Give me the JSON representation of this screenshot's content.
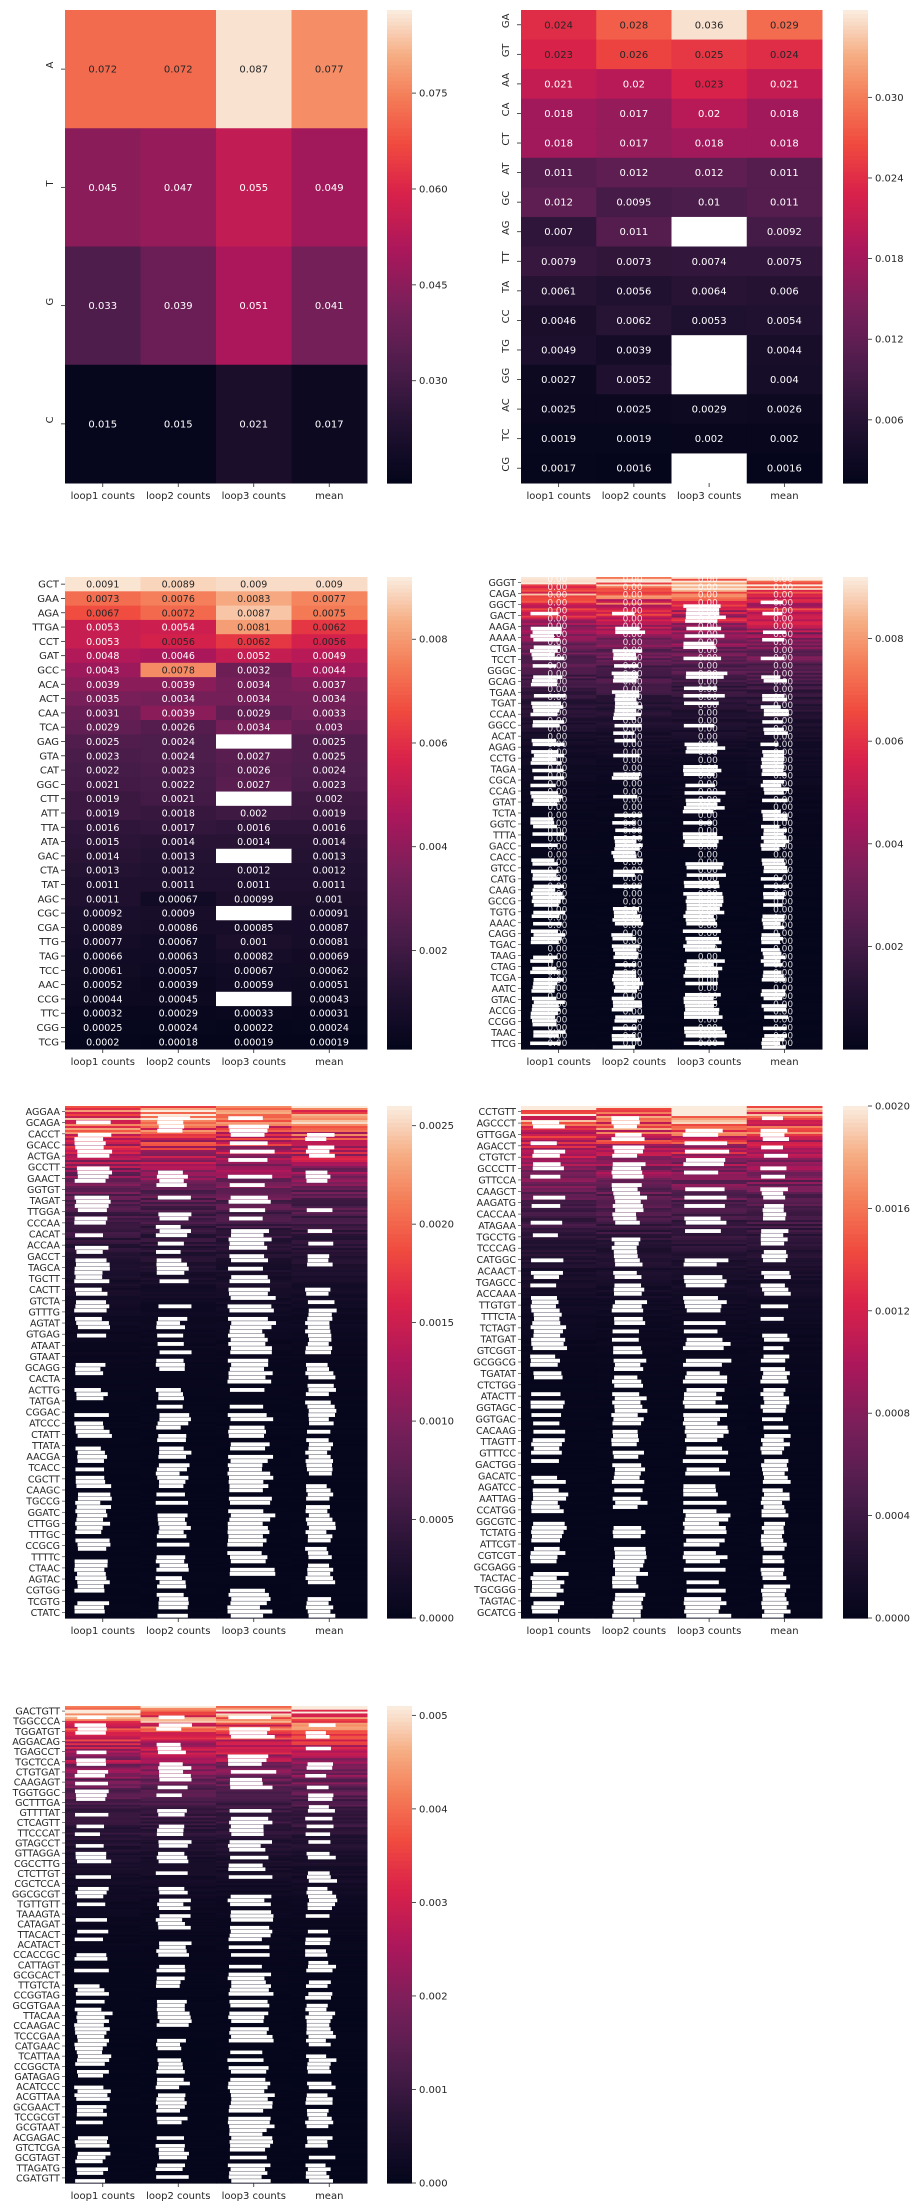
{
  "figure": {
    "background": "#ffffff"
  },
  "colormap": {
    "name": "rocket",
    "missing_color": "#ffffff",
    "text_dark": "#262626",
    "text_light": "#ffffff"
  },
  "chart_data": [
    {
      "type": "heatmap",
      "title": "",
      "columns": [
        "loop1 counts",
        "loop2 counts",
        "loop3 counts",
        "mean"
      ],
      "rows": [
        "A",
        "T",
        "G",
        "C"
      ],
      "values": [
        [
          0.072,
          0.072,
          0.087,
          0.077
        ],
        [
          0.045,
          0.047,
          0.055,
          0.049
        ],
        [
          0.033,
          0.039,
          0.051,
          0.041
        ],
        [
          0.015,
          0.015,
          0.021,
          0.017
        ]
      ],
      "annot": true,
      "row_label_rotation": "vertical",
      "vlim": [
        0.014,
        0.088
      ],
      "colorbar_ticks": [
        0.03,
        0.045,
        0.06,
        0.075
      ],
      "colorbar_labels": [
        "0.030",
        "0.045",
        "0.060",
        "0.075"
      ]
    },
    {
      "type": "heatmap",
      "title": "",
      "columns": [
        "loop1 counts",
        "loop2 counts",
        "loop3 counts",
        "mean"
      ],
      "rows": [
        "GA",
        "GT",
        "AA",
        "CA",
        "CT",
        "AT",
        "GC",
        "AG",
        "TT",
        "TA",
        "CC",
        "TG",
        "GG",
        "AC",
        "TC",
        "CG"
      ],
      "values": [
        [
          0.024,
          0.028,
          0.036,
          0.029
        ],
        [
          0.023,
          0.026,
          0.025,
          0.024
        ],
        [
          0.021,
          0.02,
          0.023,
          0.021
        ],
        [
          0.018,
          0.017,
          0.02,
          0.018
        ],
        [
          0.018,
          0.017,
          0.018,
          0.018
        ],
        [
          0.011,
          0.012,
          0.012,
          0.011
        ],
        [
          0.012,
          0.0095,
          0.01,
          0.011
        ],
        [
          0.007,
          0.011,
          null,
          0.0092
        ],
        [
          0.0079,
          0.0073,
          0.0074,
          0.0075
        ],
        [
          0.0061,
          0.0056,
          0.0064,
          0.006
        ],
        [
          0.0046,
          0.0062,
          0.0053,
          0.0054
        ],
        [
          0.0049,
          0.0039,
          null,
          0.0044
        ],
        [
          0.0027,
          0.0052,
          null,
          0.004
        ],
        [
          0.0025,
          0.0025,
          0.0029,
          0.0026
        ],
        [
          0.0019,
          0.0019,
          0.002,
          0.002
        ],
        [
          0.0017,
          0.0016,
          null,
          0.0016
        ]
      ],
      "annot": true,
      "row_label_rotation": "vertical",
      "vlim": [
        0.0013,
        0.0365
      ],
      "colorbar_ticks": [
        0.006,
        0.012,
        0.018,
        0.024,
        0.03
      ],
      "colorbar_labels": [
        "0.006",
        "0.012",
        "0.018",
        "0.024",
        "0.030"
      ]
    },
    {
      "type": "heatmap",
      "title": "",
      "columns": [
        "loop1 counts",
        "loop2 counts",
        "loop3 counts",
        "mean"
      ],
      "rows": [
        "GCT",
        "GAA",
        "AGA",
        "TTGA",
        "CCT",
        "GAT",
        "GCC",
        "ACA",
        "ACT",
        "CAA",
        "TCA",
        "GAG",
        "GTA",
        "CAT",
        "GGC",
        "CTT",
        "ATT",
        "TTA",
        "ATA",
        "GAC",
        "CTA",
        "TAT",
        "AGC",
        "CGC",
        "CGA",
        "TTG",
        "TAG",
        "TCC",
        "AAC",
        "CCG",
        "TTC",
        "CGG",
        "TCG"
      ],
      "row_labels_shown": [
        "GCT",
        "GAA",
        "AGA",
        "TTGA",
        "CCT",
        "GAT",
        "GCC",
        "ACA",
        "ACT",
        "CAA",
        "TCA",
        "GAG",
        "GTA",
        "CAT",
        "GGC",
        "CTT",
        "ATT",
        "TTA",
        "ATA",
        "GAC",
        "CTA",
        "TAT",
        "AGC",
        "CGC",
        "CGA",
        "TTG",
        "TAG",
        "TCC",
        "AAC",
        "CCG",
        "TTC",
        "CGG",
        "TCG"
      ],
      "values": [
        [
          0.0091,
          0.0089,
          0.009,
          0.009
        ],
        [
          0.0073,
          0.0076,
          0.0083,
          0.0077
        ],
        [
          0.0067,
          0.0072,
          0.0087,
          0.0075
        ],
        [
          0.0053,
          0.0054,
          0.0081,
          0.0062
        ],
        [
          0.0053,
          0.0056,
          0.0062,
          0.0056
        ],
        [
          0.0048,
          0.0046,
          0.0052,
          0.0049
        ],
        [
          0.0043,
          0.0078,
          0.0032,
          0.0044
        ],
        [
          0.0039,
          0.0039,
          0.0034,
          0.0037
        ],
        [
          0.0035,
          0.0034,
          0.0034,
          0.0034
        ],
        [
          0.0031,
          0.0039,
          0.0029,
          0.0033
        ],
        [
          0.0029,
          0.0026,
          0.0034,
          0.003
        ],
        [
          0.0025,
          0.0024,
          null,
          0.0025
        ],
        [
          0.0023,
          0.0024,
          0.0027,
          0.0025
        ],
        [
          0.0022,
          0.0023,
          0.0026,
          0.0024
        ],
        [
          0.0021,
          0.0022,
          0.0027,
          0.0023
        ],
        [
          0.0019,
          0.0021,
          null,
          0.002
        ],
        [
          0.0019,
          0.0018,
          0.002,
          0.0019
        ],
        [
          0.0016,
          0.0017,
          0.0016,
          0.0016
        ],
        [
          0.0015,
          0.0014,
          0.0014,
          0.0014
        ],
        [
          0.0014,
          0.0013,
          null,
          0.0013
        ],
        [
          0.0013,
          0.0012,
          0.0012,
          0.0012
        ],
        [
          0.0011,
          0.0011,
          0.0011,
          0.0011
        ],
        [
          0.0011,
          0.00067,
          0.00099,
          0.001
        ],
        [
          0.00092,
          0.0009,
          null,
          0.00091
        ],
        [
          0.00089,
          0.00086,
          0.00085,
          0.00087
        ],
        [
          0.00077,
          0.00067,
          0.001,
          0.00081
        ],
        [
          0.00066,
          0.00063,
          0.00082,
          0.00069
        ],
        [
          0.00061,
          0.00057,
          0.00067,
          0.00062
        ],
        [
          0.00052,
          0.00039,
          0.00059,
          0.00051
        ],
        [
          0.00044,
          0.00045,
          null,
          0.00043
        ],
        [
          0.00032,
          0.00029,
          0.00033,
          0.00031
        ],
        [
          0.00025,
          0.00024,
          0.00022,
          0.00024
        ],
        [
          0.0002,
          0.00018,
          0.00019,
          0.00019
        ]
      ],
      "annot": true,
      "row_label_rotation": "horizontal",
      "vlim": [
        0.0001,
        0.0092
      ],
      "colorbar_ticks": [
        0.002,
        0.004,
        0.006,
        0.008
      ],
      "colorbar_labels": [
        "0.002",
        "0.004",
        "0.006",
        "0.008"
      ]
    },
    {
      "type": "heatmap",
      "title": "",
      "columns": [
        "loop1 counts",
        "loop2 counts",
        "loop3 counts",
        "mean"
      ],
      "rows_count": 256,
      "row_labels_shown": [
        "GGGT",
        "CAGA",
        "GGCT",
        "GACT",
        "AAGA",
        "AAAA",
        "CTGA",
        "TCCT",
        "GGGC",
        "GCAG",
        "TGAA",
        "TGAT",
        "CCAA",
        "GGCC",
        "ACAT",
        "AGAG",
        "CCTG",
        "TAGA",
        "CGCA",
        "CCAG",
        "GTAT",
        "TCTA",
        "GGTC",
        "TTTA",
        "GACC",
        "CACC",
        "GTCC",
        "CATG",
        "CAAG",
        "GCCG",
        "TGTG",
        "AAAC",
        "CAGG",
        "TGAC",
        "TAAG",
        "CTAG",
        "TCGA",
        "AATC",
        "GTAC",
        "ACCG",
        "CCGG",
        "TAAC",
        "TTCG"
      ],
      "annot": true,
      "annot_legible": false,
      "missing_columns_heavy": [
        0,
        1,
        2,
        3
      ],
      "vlim": [
        0,
        0.0092
      ],
      "colorbar_ticks": [
        0.002,
        0.004,
        0.006,
        0.008
      ],
      "colorbar_labels": [
        "0.002",
        "0.004",
        "0.006",
        "0.008"
      ]
    },
    {
      "type": "heatmap",
      "title": "",
      "columns": [
        "loop1 counts",
        "loop2 counts",
        "loop3 counts",
        "mean"
      ],
      "rows_count": 1024,
      "row_labels_shown": [
        "AGGAA",
        "GCAGA",
        "CACCT",
        "GCACC",
        "ACTGA",
        "GCCTT",
        "GAACT",
        "GGTGT",
        "TAGAT",
        "TTGGA",
        "CCCAA",
        "CACAT",
        "ACCAA",
        "GACCT",
        "TAGCA",
        "TGCTT",
        "CACTT",
        "GTCTA",
        "GTTTG",
        "AGTAT",
        "GTGAG",
        "ATAAT",
        "GTAAT",
        "GCAGG",
        "CACTA",
        "ACTTG",
        "TATGA",
        "CGGAC",
        "ATCCC",
        "CTATT",
        "TTATA",
        "AACGA",
        "TCACC",
        "CGCTT",
        "CAAGC",
        "TGCCG",
        "GGATC",
        "CTTGG",
        "TTTGC",
        "CCGCG",
        "TTTTC",
        "CTAAC",
        "AGTAC",
        "CGTGG",
        "TCGTG",
        "CTATC"
      ],
      "annot": false,
      "vlim": [
        0,
        0.0026
      ],
      "colorbar_ticks": [
        0.0,
        0.0005,
        0.001,
        0.0015,
        0.002,
        0.0025
      ],
      "colorbar_labels": [
        "0.0000",
        "0.0005",
        "0.0010",
        "0.0015",
        "0.0020",
        "0.0025"
      ]
    },
    {
      "type": "heatmap",
      "title": "",
      "columns": [
        "loop1 counts",
        "loop2 counts",
        "loop3 counts",
        "mean"
      ],
      "rows_count": 4096,
      "row_labels_shown": [
        "CCTGTT",
        "AGCCCT",
        "GTTGGA",
        "AGACCT",
        "CTGTCT",
        "GCCCTT",
        "GTTCCA",
        "CAAGCT",
        "AAGATG",
        "CACCAA",
        "ATAGAA",
        "TGCCTG",
        "TCCCAG",
        "CATGGC",
        "ACAACT",
        "TGAGCC",
        "ACCAAA",
        "TTGTGT",
        "TTTCTA",
        "TCTAGT",
        "TATGAT",
        "GTCGGT",
        "GCGGCG",
        "TGATAT",
        "CTCTGG",
        "ATACTT",
        "GGTAGC",
        "GGTGAC",
        "CACAAG",
        "TTAGTT",
        "GTTTCC",
        "GACTGG",
        "GACATC",
        "AGATCC",
        "AATTAG",
        "CCATGG",
        "GGCGTC",
        "TCTATG",
        "ATTCGT",
        "CGTCGT",
        "GCGAGG",
        "TACTAC",
        "TGCGGG",
        "TAGTAC",
        "GCATCG"
      ],
      "annot": false,
      "vlim": [
        0,
        0.002
      ],
      "colorbar_ticks": [
        0.0,
        0.0004,
        0.0008,
        0.0012,
        0.0016,
        0.002
      ],
      "colorbar_labels": [
        "0.0000",
        "0.0004",
        "0.0008",
        "0.0012",
        "0.0016",
        "0.0020"
      ]
    },
    {
      "type": "heatmap",
      "title": "",
      "columns": [
        "loop1 counts",
        "loop2 counts",
        "loop3 counts",
        "mean"
      ],
      "rows_count": 16384,
      "row_labels_shown": [
        "GACTGTT",
        "TGGCCCA",
        "TGGATGT",
        "AGGACAG",
        "TGAGCCT",
        "TGCTCCA",
        "CTGTGAT",
        "CAAGAGT",
        "TGGTGGC",
        "GCTTTGA",
        "GTTTTAT",
        "CTCAGTT",
        "TTCCCAT",
        "GTAGCCT",
        "GTTAGGA",
        "CGCCTTG",
        "CTCTTGT",
        "CGCTCCA",
        "GGCGCGT",
        "TGTTGTT",
        "TAAAGTA",
        "CATAGAT",
        "TTACACT",
        "ACATACT",
        "CCACCGC",
        "CATTAGT",
        "GCGCACT",
        "TTGTCTA",
        "CCGGTAG",
        "GCGTGAA",
        "TTACAA",
        "CCAAGAC",
        "TCCCGAA",
        "CATGAAC",
        "TCATTAA",
        "CCGGCTA",
        "GATAGAG",
        "ACATCCC",
        "ACGTTAA",
        "GCGAACT",
        "TCCGCGT",
        "GCGTAAT",
        "ACGAGAC",
        "GTCTCGA",
        "GCGTAGT",
        "TTAGATG",
        "CGATGTT"
      ],
      "annot": false,
      "vlim": [
        0,
        0.0051
      ],
      "colorbar_ticks": [
        0.0,
        0.001,
        0.002,
        0.003,
        0.004,
        0.005
      ],
      "colorbar_labels": [
        "0.000",
        "0.001",
        "0.002",
        "0.003",
        "0.004",
        "0.005"
      ]
    }
  ]
}
